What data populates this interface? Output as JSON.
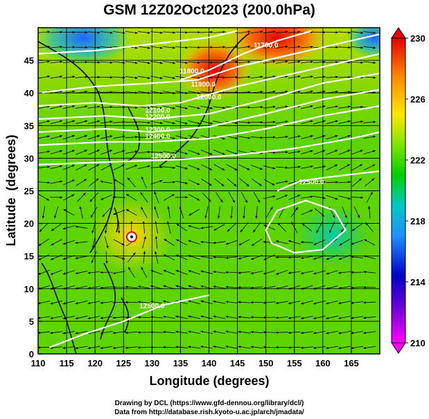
{
  "chart_data": {
    "type": "heatmap",
    "title": "GSM 12Z02Oct2023 (200.0hPa)",
    "xlabel": "Longitude (degrees)",
    "ylabel": "Latitude  (degrees)",
    "xlim": [
      110,
      170
    ],
    "ylim": [
      0,
      50
    ],
    "x_ticks": [
      110,
      115,
      120,
      125,
      130,
      135,
      140,
      145,
      150,
      155,
      160,
      165
    ],
    "y_ticks": [
      0,
      5,
      10,
      15,
      20,
      25,
      30,
      35,
      40,
      45
    ],
    "colorbar": {
      "min": 210,
      "max": 230,
      "ticks": [
        210,
        214,
        218,
        222,
        226,
        230
      ],
      "colormap": [
        "#ff00ff",
        "#0000c8",
        "#1e90ff",
        "#00c8c8",
        "#00d200",
        "#7ee600",
        "#ffe600",
        "#ff8c00",
        "#e60000"
      ]
    },
    "field_samples": [
      {
        "lon": 122,
        "lat": 47,
        "value": 218.5
      },
      {
        "lon": 140,
        "lat": 45,
        "value": 228.5
      },
      {
        "lon": 150,
        "lat": 48,
        "value": 229.0
      },
      {
        "lon": 165,
        "lat": 47,
        "value": 219.0
      },
      {
        "lon": 126,
        "lat": 20,
        "value": 225.5
      },
      {
        "lon": 130,
        "lat": 33,
        "value": 222.5
      },
      {
        "lon": 160,
        "lat": 20,
        "value": 222.0
      },
      {
        "lon": 145,
        "lat": 10,
        "value": 223.0
      }
    ],
    "contours": [
      {
        "label": "11700.0",
        "lon": 150,
        "lat": 47
      },
      {
        "label": "11800.0",
        "lon": 137,
        "lat": 43
      },
      {
        "label": "11900.0",
        "lon": 139,
        "lat": 41
      },
      {
        "label": "12000.0",
        "lon": 140,
        "lat": 39
      },
      {
        "label": "12100.0",
        "lon": 131,
        "lat": 37
      },
      {
        "label": "12200.0",
        "lon": 131,
        "lat": 36
      },
      {
        "label": "12300.0",
        "lon": 131,
        "lat": 34
      },
      {
        "label": "12400.0",
        "lon": 131,
        "lat": 33
      },
      {
        "label": "12500.0",
        "lon": 132,
        "lat": 30
      },
      {
        "label": "12500.0",
        "lon": 158,
        "lat": 26
      },
      {
        "label": "12500.0",
        "lon": 130,
        "lat": 7
      }
    ],
    "grid": true,
    "overlays": [
      "streamlines",
      "coastlines"
    ]
  },
  "credits": {
    "line1": "Drawing by DCL (https://www.gfd-dennou.org/library/dcl/)",
    "line2": "Data from http://database.rish.kyoto-u.ac.jp/arch/jmadata/"
  }
}
